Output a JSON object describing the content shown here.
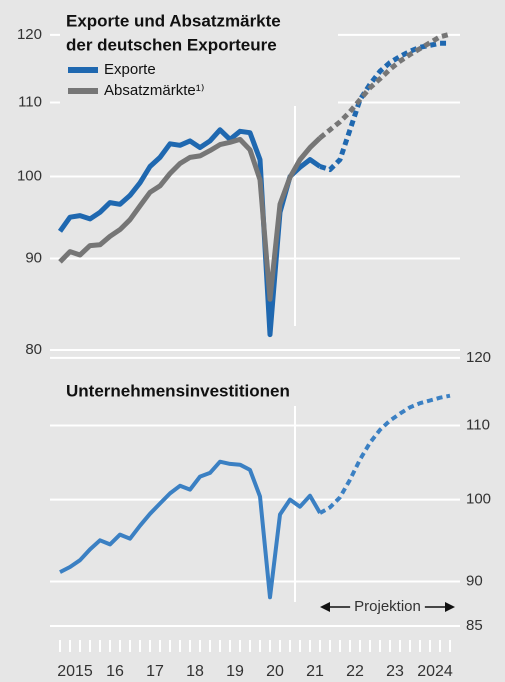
{
  "chart_data": [
    {
      "type": "line",
      "title": [
        "Exporte und Absatzmärkte",
        "der deutschen Exporteure"
      ],
      "yscale": "log",
      "ylim": [
        80,
        122
      ],
      "yticks": [
        80,
        90,
        100,
        110,
        120
      ],
      "xlim": [
        2014.875,
        2025.125
      ],
      "grid": true,
      "vlines": [
        2021
      ],
      "legend": "top-left",
      "projection_from": 2021.625,
      "x": [
        2015.125,
        2015.375,
        2015.625,
        2015.875,
        2016.125,
        2016.375,
        2016.625,
        2016.875,
        2017.125,
        2017.375,
        2017.625,
        2017.875,
        2018.125,
        2018.375,
        2018.625,
        2018.875,
        2019.125,
        2019.375,
        2019.625,
        2019.875,
        2020.125,
        2020.375,
        2020.625,
        2020.875,
        2021.125,
        2021.375,
        2021.625,
        2021.875,
        2022.125,
        2022.375,
        2022.625,
        2022.875,
        2023.125,
        2023.375,
        2023.625,
        2023.875,
        2024.125,
        2024.375,
        2024.625,
        2024.875
      ],
      "series": [
        {
          "name": "Exporte",
          "color": "#1f68b0",
          "values": [
            93.2,
            94.9,
            95.1,
            94.7,
            95.5,
            96.7,
            96.5,
            97.6,
            99.2,
            101.3,
            102.5,
            104.3,
            104.1,
            104.7,
            103.8,
            104.7,
            106.2,
            104.9,
            106.0,
            105.8,
            102.2,
            81.6,
            95.5,
            100.0,
            101.2,
            102.2,
            101.3,
            100.9,
            102.2,
            106.2,
            110.4,
            112.6,
            114.5,
            115.8,
            116.7,
            117.5,
            118.1,
            118.4,
            118.7,
            118.7
          ]
        },
        {
          "name": "Absatzmärkte¹⁾",
          "color": "#767676",
          "values": [
            89.6,
            90.8,
            90.4,
            91.5,
            91.6,
            92.6,
            93.4,
            94.6,
            96.3,
            98.0,
            98.8,
            100.4,
            101.7,
            102.5,
            102.7,
            103.4,
            104.2,
            104.5,
            104.9,
            103.5,
            99.6,
            85.4,
            96.5,
            99.9,
            102.2,
            103.8,
            105.1,
            106.2,
            107.3,
            108.7,
            110.4,
            112.1,
            113.4,
            114.8,
            116.0,
            117.0,
            117.9,
            118.8,
            119.7,
            120.1
          ]
        }
      ]
    },
    {
      "type": "line",
      "title": "Unternehmensinvestitionen",
      "yscale": "log",
      "ylim": [
        85,
        122
      ],
      "yticks": [
        85,
        90,
        100,
        110,
        120
      ],
      "xlim": [
        2014.875,
        2025.125
      ],
      "grid": true,
      "vlines": [
        2021
      ],
      "xticks": [
        {
          "value": 2015.5,
          "label": "2015"
        },
        {
          "value": 2016.5,
          "label": "16"
        },
        {
          "value": 2017.5,
          "label": "17"
        },
        {
          "value": 2018.5,
          "label": "18"
        },
        {
          "value": 2019.5,
          "label": "19"
        },
        {
          "value": 2020.5,
          "label": "20"
        },
        {
          "value": 2021.5,
          "label": "21"
        },
        {
          "value": 2022.5,
          "label": "22"
        },
        {
          "value": 2023.5,
          "label": "23"
        },
        {
          "value": 2024.5,
          "label": "2024"
        }
      ],
      "annotation": {
        "label": "Projektion",
        "from": 2021.625,
        "to": 2025
      },
      "x": [
        2015.125,
        2015.375,
        2015.625,
        2015.875,
        2016.125,
        2016.375,
        2016.625,
        2016.875,
        2017.125,
        2017.375,
        2017.625,
        2017.875,
        2018.125,
        2018.375,
        2018.625,
        2018.875,
        2019.125,
        2019.375,
        2019.625,
        2019.875,
        2020.125,
        2020.375,
        2020.625,
        2020.875,
        2021.125,
        2021.375,
        2021.625,
        2021.875,
        2022.125,
        2022.375,
        2022.625,
        2022.875,
        2023.125,
        2023.375,
        2023.625,
        2023.875,
        2024.125,
        2024.375,
        2024.625,
        2024.875
      ],
      "series": [
        {
          "color": "#3b80c3",
          "values": [
            91.1,
            91.7,
            92.5,
            93.8,
            94.9,
            94.4,
            95.6,
            95.1,
            96.7,
            98.2,
            99.5,
            100.8,
            101.8,
            101.3,
            103.0,
            103.5,
            105.0,
            104.7,
            104.6,
            103.9,
            100.4,
            88.2,
            98.1,
            100.0,
            99.1,
            100.5,
            98.3,
            99.0,
            100.3,
            102.6,
            105.3,
            107.6,
            109.4,
            110.7,
            111.7,
            112.6,
            113.2,
            113.6,
            114.0,
            114.3
          ]
        }
      ]
    }
  ]
}
